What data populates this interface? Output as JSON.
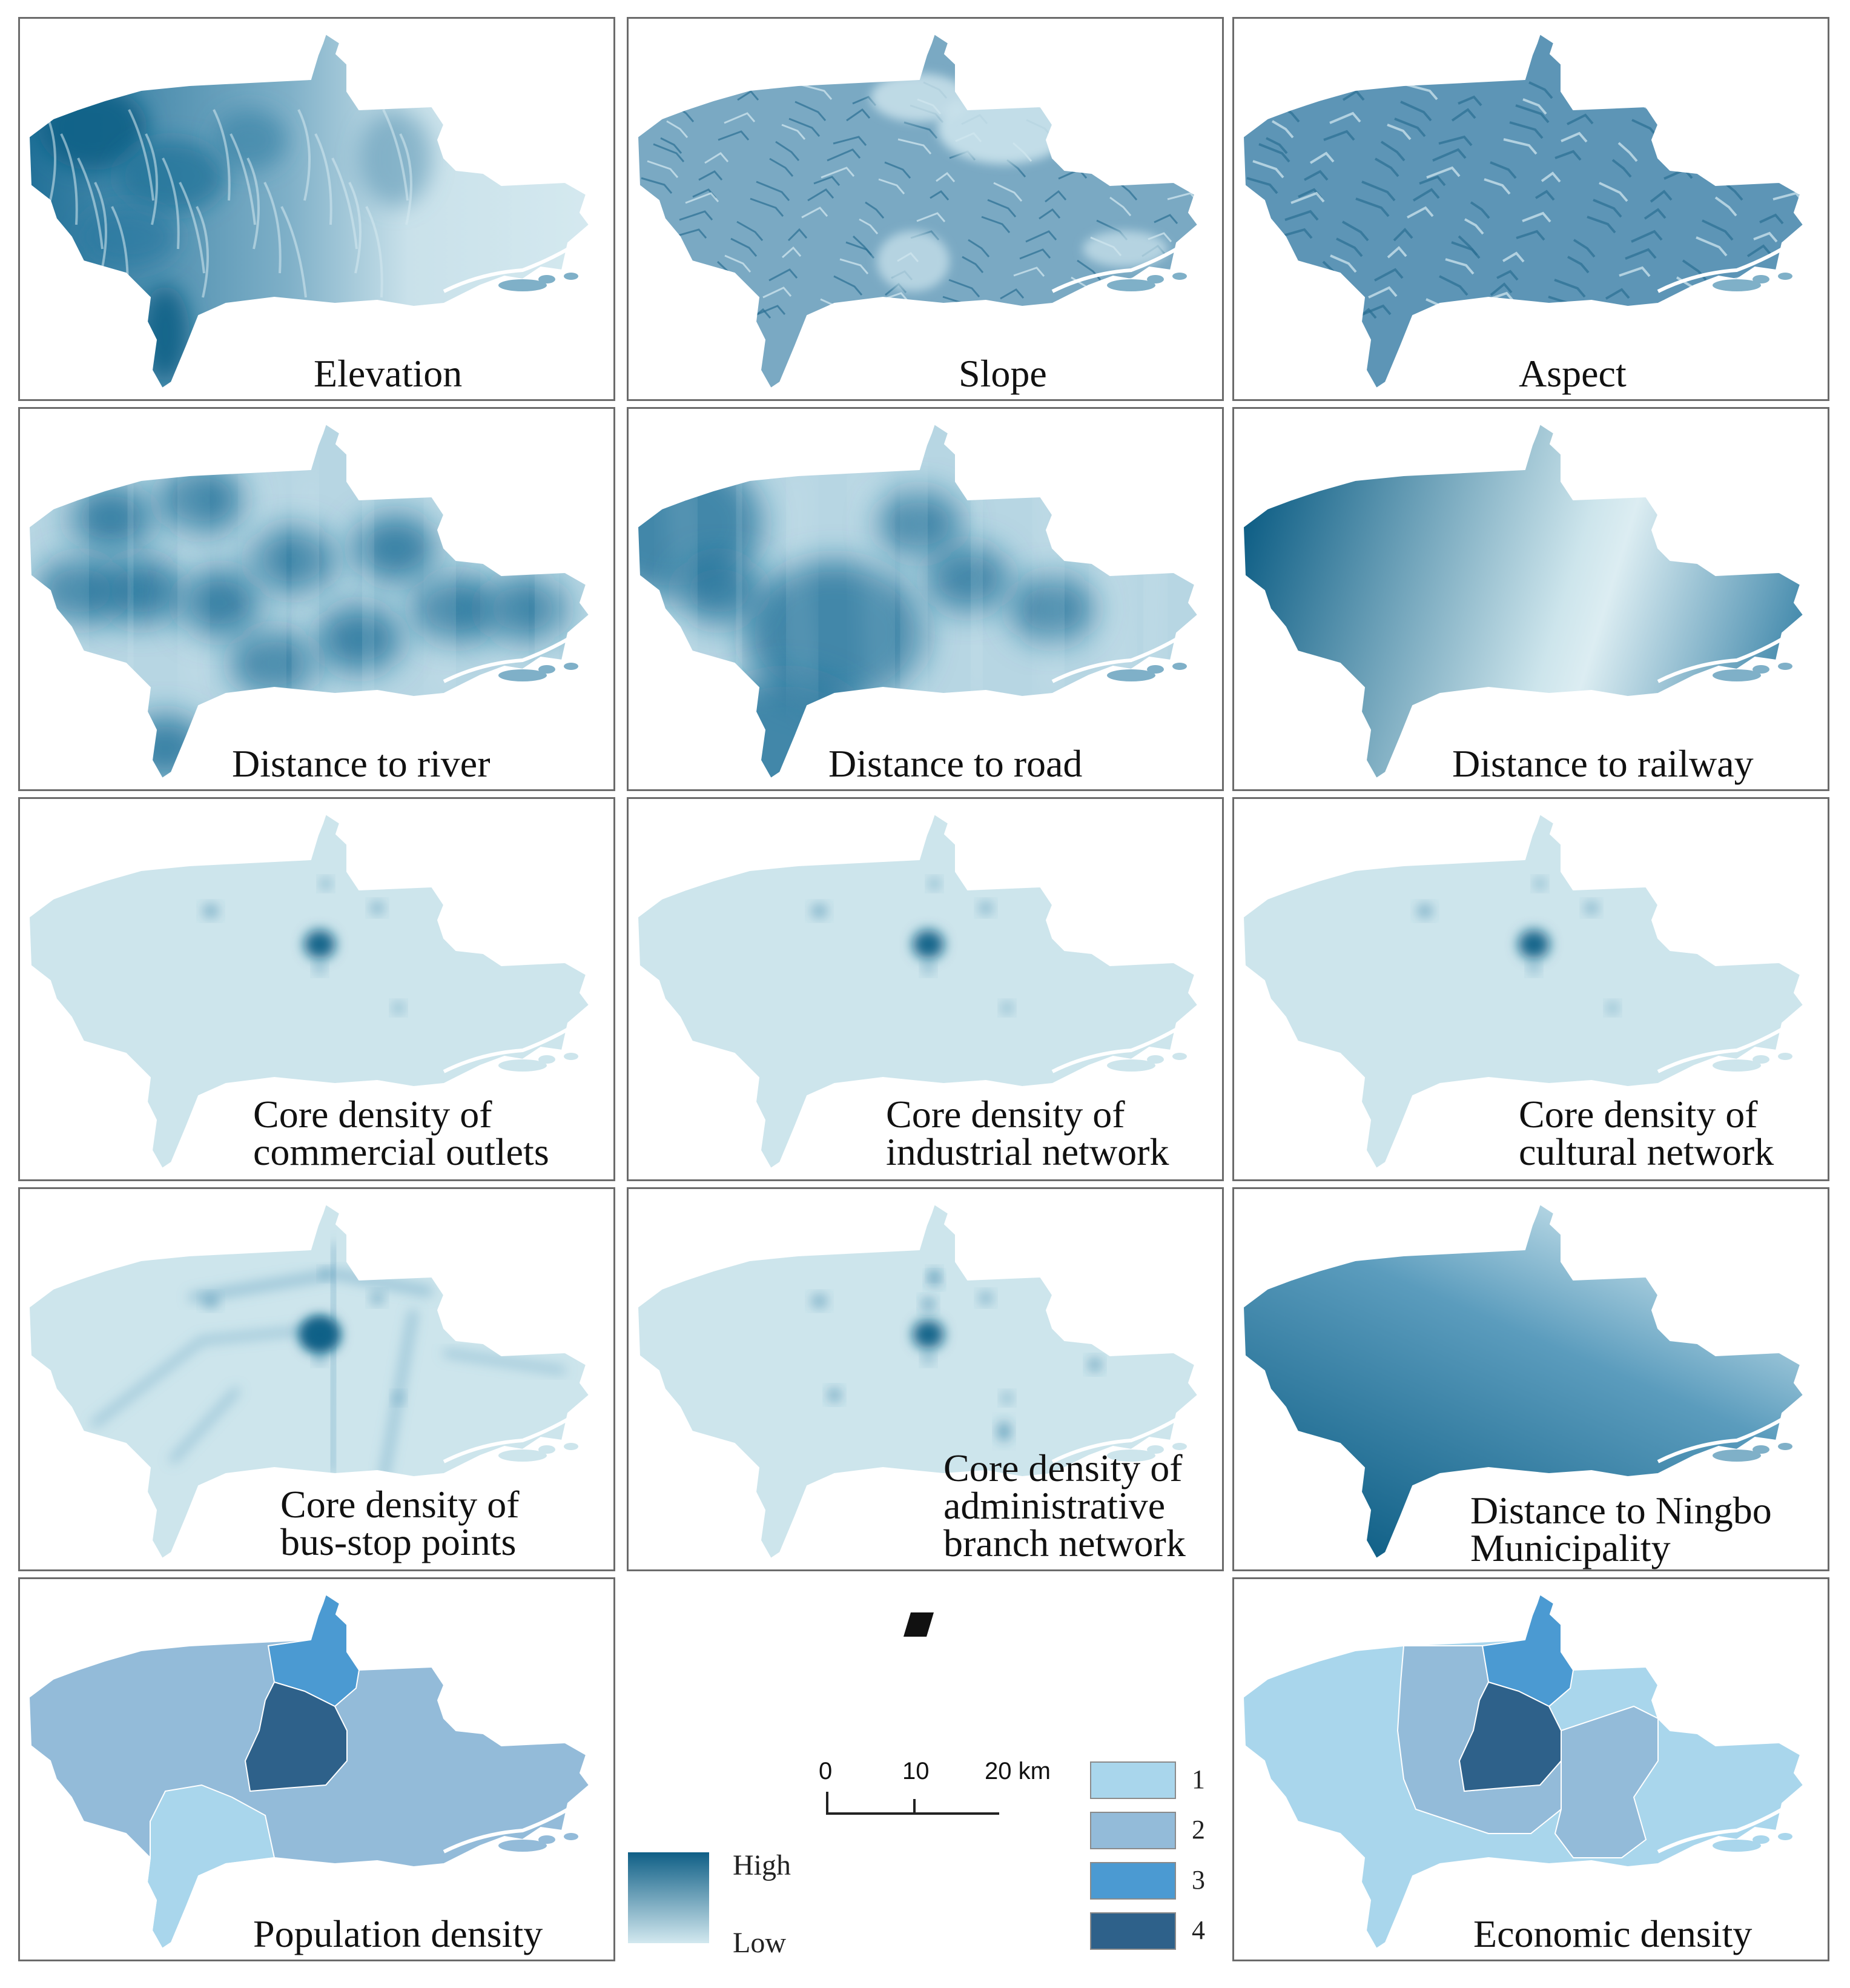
{
  "panels": [
    {
      "id": "elevation",
      "lines": [
        "Elevation"
      ],
      "pattern": "elevation"
    },
    {
      "id": "slope",
      "lines": [
        "Slope"
      ],
      "pattern": "slope"
    },
    {
      "id": "aspect",
      "lines": [
        "Aspect"
      ],
      "pattern": "aspect"
    },
    {
      "id": "distance-to-river",
      "lines": [
        "Distance to river"
      ],
      "pattern": "river"
    },
    {
      "id": "distance-to-road",
      "lines": [
        "Distance to road"
      ],
      "pattern": "road"
    },
    {
      "id": "distance-to-railway",
      "lines": [
        "Distance to railway"
      ],
      "pattern": "railway"
    },
    {
      "id": "core-density-commercial",
      "lines": [
        "Core density of",
        "commercial outlets"
      ],
      "pattern": "kde1"
    },
    {
      "id": "core-density-industrial",
      "lines": [
        "Core density of",
        "industrial network"
      ],
      "pattern": "kde1"
    },
    {
      "id": "core-density-cultural",
      "lines": [
        "Core density of",
        "cultural network"
      ],
      "pattern": "kde1"
    },
    {
      "id": "core-density-bus-stop",
      "lines": [
        "Core density of",
        "bus-stop points"
      ],
      "pattern": "kde2"
    },
    {
      "id": "core-density-administrative",
      "lines": [
        "Core density of",
        "administrative",
        "branch network"
      ],
      "pattern": "kde3"
    },
    {
      "id": "distance-to-ningbo",
      "lines": [
        "Distance to Ningbo",
        "Municipality"
      ],
      "pattern": "ningbo"
    },
    {
      "id": "population-density",
      "lines": [
        "Population density"
      ],
      "pattern": "population"
    },
    {
      "id": "economic-density",
      "lines": [
        "Economic density"
      ],
      "pattern": "economic"
    }
  ],
  "legend": {
    "gradient_high": "High",
    "gradient_low": "Low",
    "scale_ticks": [
      "0",
      "10",
      "20 km"
    ],
    "classes": [
      {
        "label": "1",
        "color": "#a9d6ec"
      },
      {
        "label": "2",
        "color": "#93bbd9"
      },
      {
        "label": "3",
        "color": "#4b9ad2"
      },
      {
        "label": "4",
        "color": "#2e618a"
      }
    ],
    "colors": {
      "high": "#0f5f86",
      "low": "#d2e8ef",
      "base": "#cde5ec"
    }
  }
}
